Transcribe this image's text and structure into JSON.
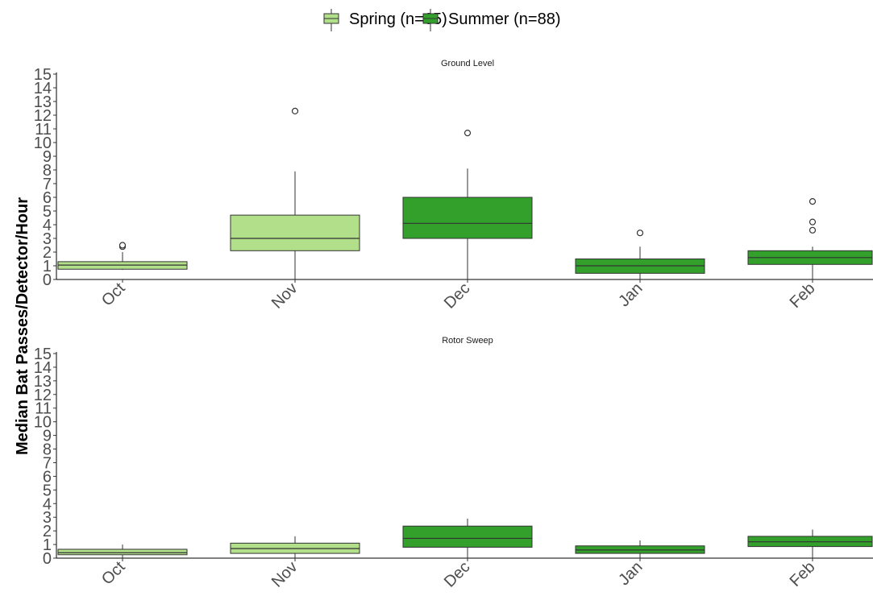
{
  "chart_data": {
    "type": "box",
    "ylabel": "Median Bat Passes/Detector/Hour",
    "ylim": [
      0,
      15
    ],
    "yticks": [
      "0",
      "1",
      "2",
      "3",
      "4",
      "5",
      "6",
      "7",
      "8",
      "9",
      "10",
      "11",
      "12",
      "13",
      "14",
      "15"
    ],
    "categories": [
      "Oct",
      "Nov",
      "Dec",
      "Jan",
      "Feb"
    ],
    "legend": {
      "position": "top",
      "items": [
        {
          "label": "Spring (n=65)",
          "color": "#b2df8a"
        },
        {
          "label": "Summer (n=88)",
          "color": "#33a02c"
        }
      ]
    },
    "panels": [
      {
        "title": "Ground Level",
        "boxes": [
          {
            "category": "Oct",
            "season": "Spring",
            "min": 0.7,
            "q1": 0.75,
            "median": 1.05,
            "q3": 1.3,
            "max": 2.0,
            "outliers": [
              2.4,
              2.5
            ]
          },
          {
            "category": "Nov",
            "season": "Spring",
            "min": 0.0,
            "q1": 2.1,
            "median": 3.0,
            "q3": 4.7,
            "max": 7.9,
            "outliers": [
              12.3
            ]
          },
          {
            "category": "Dec",
            "season": "Summer",
            "min": 0.0,
            "q1": 3.0,
            "median": 4.1,
            "q3": 6.0,
            "max": 8.1,
            "outliers": [
              10.7
            ]
          },
          {
            "category": "Jan",
            "season": "Summer",
            "min": 0.0,
            "q1": 0.45,
            "median": 1.0,
            "q3": 1.5,
            "max": 2.4,
            "outliers": [
              3.4
            ]
          },
          {
            "category": "Feb",
            "season": "Summer",
            "min": 0.0,
            "q1": 1.1,
            "median": 1.6,
            "q3": 2.1,
            "max": 2.4,
            "outliers": [
              3.6,
              4.2,
              5.7
            ]
          }
        ]
      },
      {
        "title": "Rotor Sweep",
        "boxes": [
          {
            "category": "Oct",
            "season": "Spring",
            "min": 0.0,
            "q1": 0.25,
            "median": 0.4,
            "q3": 0.65,
            "max": 1.0,
            "outliers": []
          },
          {
            "category": "Nov",
            "season": "Spring",
            "min": 0.0,
            "q1": 0.35,
            "median": 0.7,
            "q3": 1.1,
            "max": 1.6,
            "outliers": []
          },
          {
            "category": "Dec",
            "season": "Summer",
            "min": 0.0,
            "q1": 0.8,
            "median": 1.45,
            "q3": 2.35,
            "max": 2.9,
            "outliers": []
          },
          {
            "category": "Jan",
            "season": "Summer",
            "min": 0.0,
            "q1": 0.35,
            "median": 0.6,
            "q3": 0.9,
            "max": 1.3,
            "outliers": []
          },
          {
            "category": "Feb",
            "season": "Summer",
            "min": 0.0,
            "q1": 0.85,
            "median": 1.2,
            "q3": 1.6,
            "max": 2.1,
            "outliers": []
          }
        ]
      }
    ]
  }
}
